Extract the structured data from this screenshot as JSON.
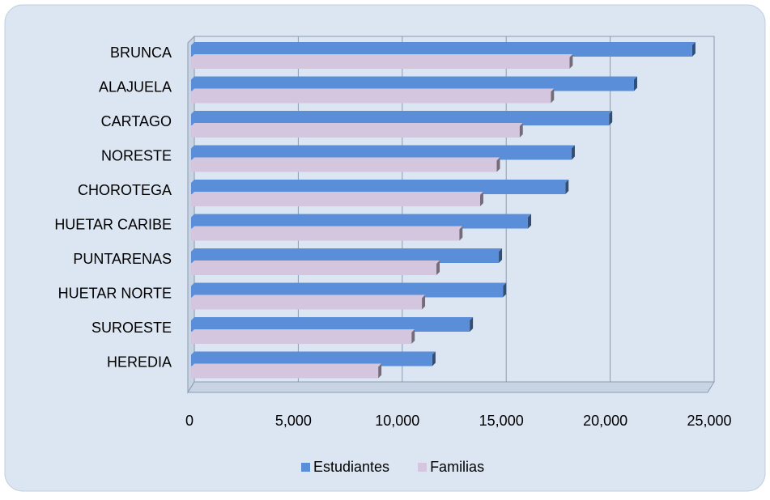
{
  "chart_data": {
    "type": "bar3d_horizontal",
    "categories": [
      "BRUNCA",
      "ALAJUELA",
      "CARTAGO",
      "NORESTE",
      "CHOROTEGA",
      "HUETAR CARIBE",
      "PUNTARENAS",
      "HUETAR NORTE",
      "SUROESTE",
      "HEREDIA"
    ],
    "series": [
      {
        "name": "Estudiantes",
        "color": "#5a8ed8",
        "values": [
          24100,
          21300,
          20100,
          18300,
          18000,
          16200,
          14800,
          15000,
          13400,
          11600
        ]
      },
      {
        "name": "Familias",
        "color": "#d5c6df",
        "values": [
          18200,
          17300,
          15800,
          14700,
          13900,
          12900,
          11800,
          11100,
          10600,
          9000
        ]
      }
    ],
    "xlim": [
      0,
      25000
    ],
    "xticks": [
      0,
      {
        "value": 5000,
        "label": "5,000"
      },
      {
        "value": 10000,
        "label": "10,000"
      },
      {
        "value": 15000,
        "label": "15,000"
      },
      {
        "value": 20000,
        "label": "20,000"
      },
      {
        "value": 25000,
        "label": "25,000"
      }
    ],
    "grid": true,
    "legend": "bottom"
  }
}
